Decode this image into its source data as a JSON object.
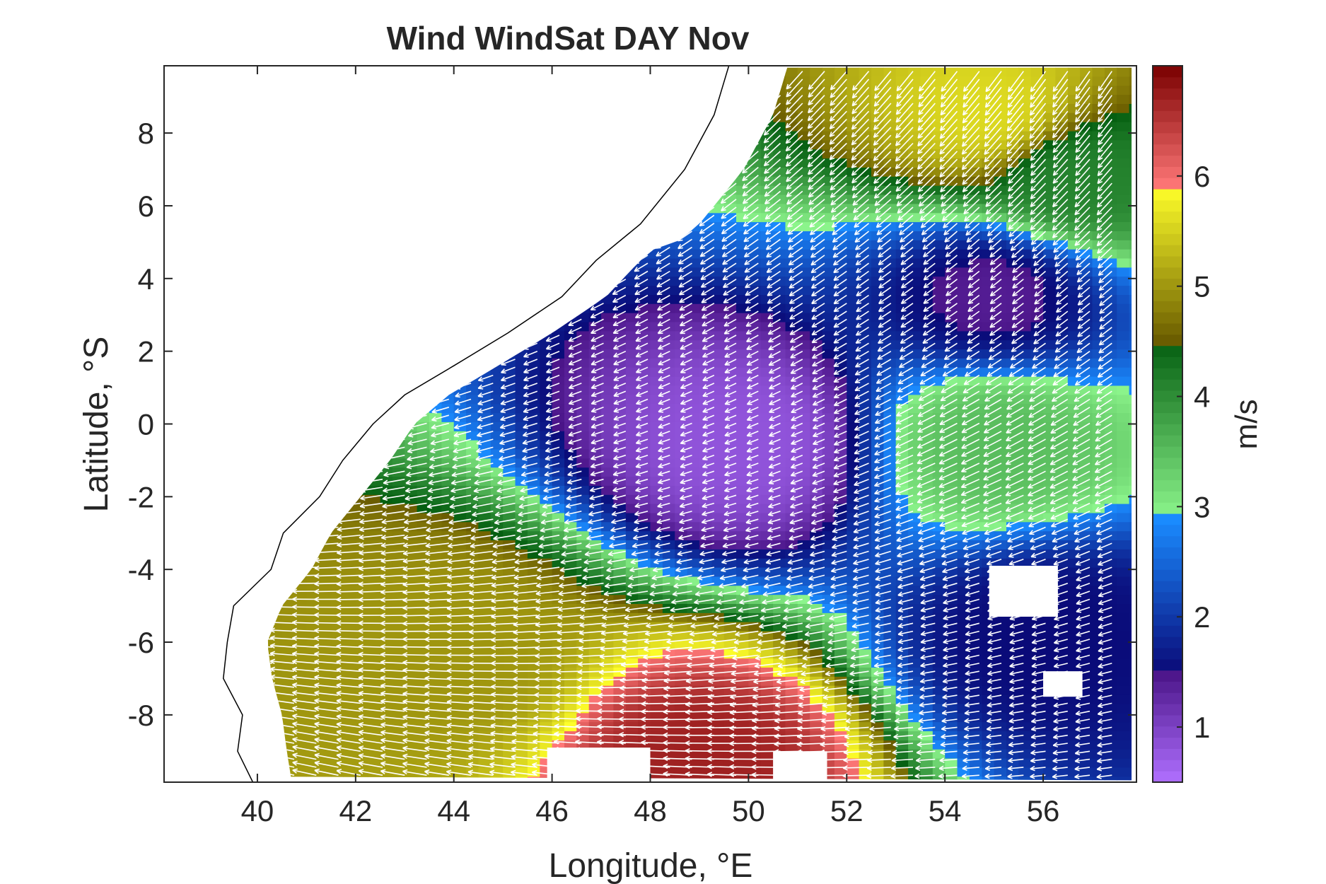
{
  "chart_data": {
    "type": "heatmap",
    "subtype": "quiver-map",
    "title": "Wind WindSat DAY Nov",
    "xlabel": "Longitude, °E",
    "ylabel": "Latitude, °S",
    "xlim": [
      38.1,
      57.9
    ],
    "ylim": [
      -9.85,
      9.85
    ],
    "xticks": [
      40,
      42,
      44,
      46,
      48,
      50,
      52,
      54,
      56
    ],
    "yticks": [
      8,
      6,
      4,
      2,
      0,
      -2,
      -4,
      -6,
      -8
    ],
    "colorbar": {
      "label": "m/s",
      "range": [
        0.5,
        7.0
      ],
      "ticks": [
        1,
        2,
        3,
        4,
        5,
        6
      ],
      "colormap": [
        {
          "from": 0.5,
          "to": 1.5,
          "start": "#b070ff",
          "end": "#4a1488"
        },
        {
          "from": 1.5,
          "to": 2.9,
          "start": "#0a0a78",
          "end": "#1a8cff"
        },
        {
          "from": 2.9,
          "to": 4.5,
          "start": "#8cf58c",
          "end": "#045e10"
        },
        {
          "from": 4.5,
          "to": 5.9,
          "start": "#6a5c00",
          "end": "#ffff2a"
        },
        {
          "from": 5.9,
          "to": 7.0,
          "start": "#ff7878",
          "end": "#7a0000"
        }
      ]
    },
    "data_extent": {
      "lon_start": 40.2,
      "lon_end": 57.8,
      "lat_top": 9.8,
      "lat_bottom": -9.8,
      "resolution_deg": 0.25
    },
    "regions": [
      {
        "name": "northern yellow band",
        "lon": 55,
        "lat": 8.5,
        "speed": 5.6
      },
      {
        "name": "northeast green",
        "lon": 56.5,
        "lat": 6.8,
        "speed": 4.1
      },
      {
        "name": "northeast blue-purple minimum",
        "lon": 55,
        "lat": 3.6,
        "speed": 1.4
      },
      {
        "name": "central purple minimum",
        "lon": 50,
        "lat": -0.5,
        "speed": 0.8
      },
      {
        "name": "eastern green band",
        "lon": 55,
        "lat": -0.5,
        "speed": 3.5
      },
      {
        "name": "southeast purple minimum",
        "lon": 56,
        "lat": -5.8,
        "speed": 1.5
      },
      {
        "name": "southwest olive band",
        "lon": 44,
        "lat": -6.5,
        "speed": 5.0
      },
      {
        "name": "southern red maximum",
        "lon": 49,
        "lat": -9.3,
        "speed": 6.7
      }
    ],
    "wind_direction": "predominantly westward/south-westward (easterly to north-easterly), shown as white vectors"
  }
}
